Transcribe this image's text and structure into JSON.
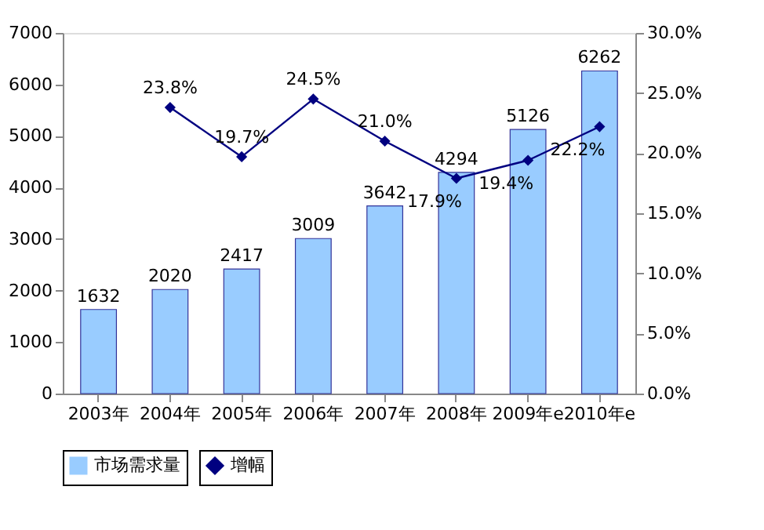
{
  "chart_data": {
    "type": "bar",
    "categories": [
      "2003年",
      "2004年",
      "2005年",
      "2006年",
      "2007年",
      "2008年",
      "2009年e",
      "2010年e"
    ],
    "series": [
      {
        "name": "市场需求量",
        "type": "bar",
        "color": "#99ccff",
        "values": [
          1632,
          2020,
          2417,
          3009,
          3642,
          4294,
          5126,
          6262
        ],
        "value_labels": [
          "1632",
          "2020",
          "2417",
          "3009",
          "3642",
          "4294",
          "5126",
          "6262"
        ]
      },
      {
        "name": "增幅",
        "type": "line",
        "axis": "y2",
        "color": "#000080",
        "marker": "diamond",
        "values": [
          null,
          23.8,
          19.7,
          24.5,
          21.0,
          17.9,
          19.4,
          22.2
        ],
        "value_labels": [
          null,
          "23.8%",
          "19.7%",
          "24.5%",
          "21.0%",
          "17.9%",
          "19.4%",
          "22.2%"
        ]
      }
    ],
    "ylim": [
      0,
      7000
    ],
    "yticks": [
      0,
      1000,
      2000,
      3000,
      4000,
      5000,
      6000,
      7000
    ],
    "y2lim": [
      0,
      30
    ],
    "y2ticks": [
      {
        "value": 0,
        "label": "0.0%"
      },
      {
        "value": 5,
        "label": "5.0%"
      },
      {
        "value": 10,
        "label": "10.0%"
      },
      {
        "value": 15,
        "label": "15.0%"
      },
      {
        "value": 20,
        "label": "20.0%"
      },
      {
        "value": 25,
        "label": "25.0%"
      },
      {
        "value": 30,
        "label": "30.0%"
      }
    ],
    "grid": false,
    "legend": "bottom"
  }
}
